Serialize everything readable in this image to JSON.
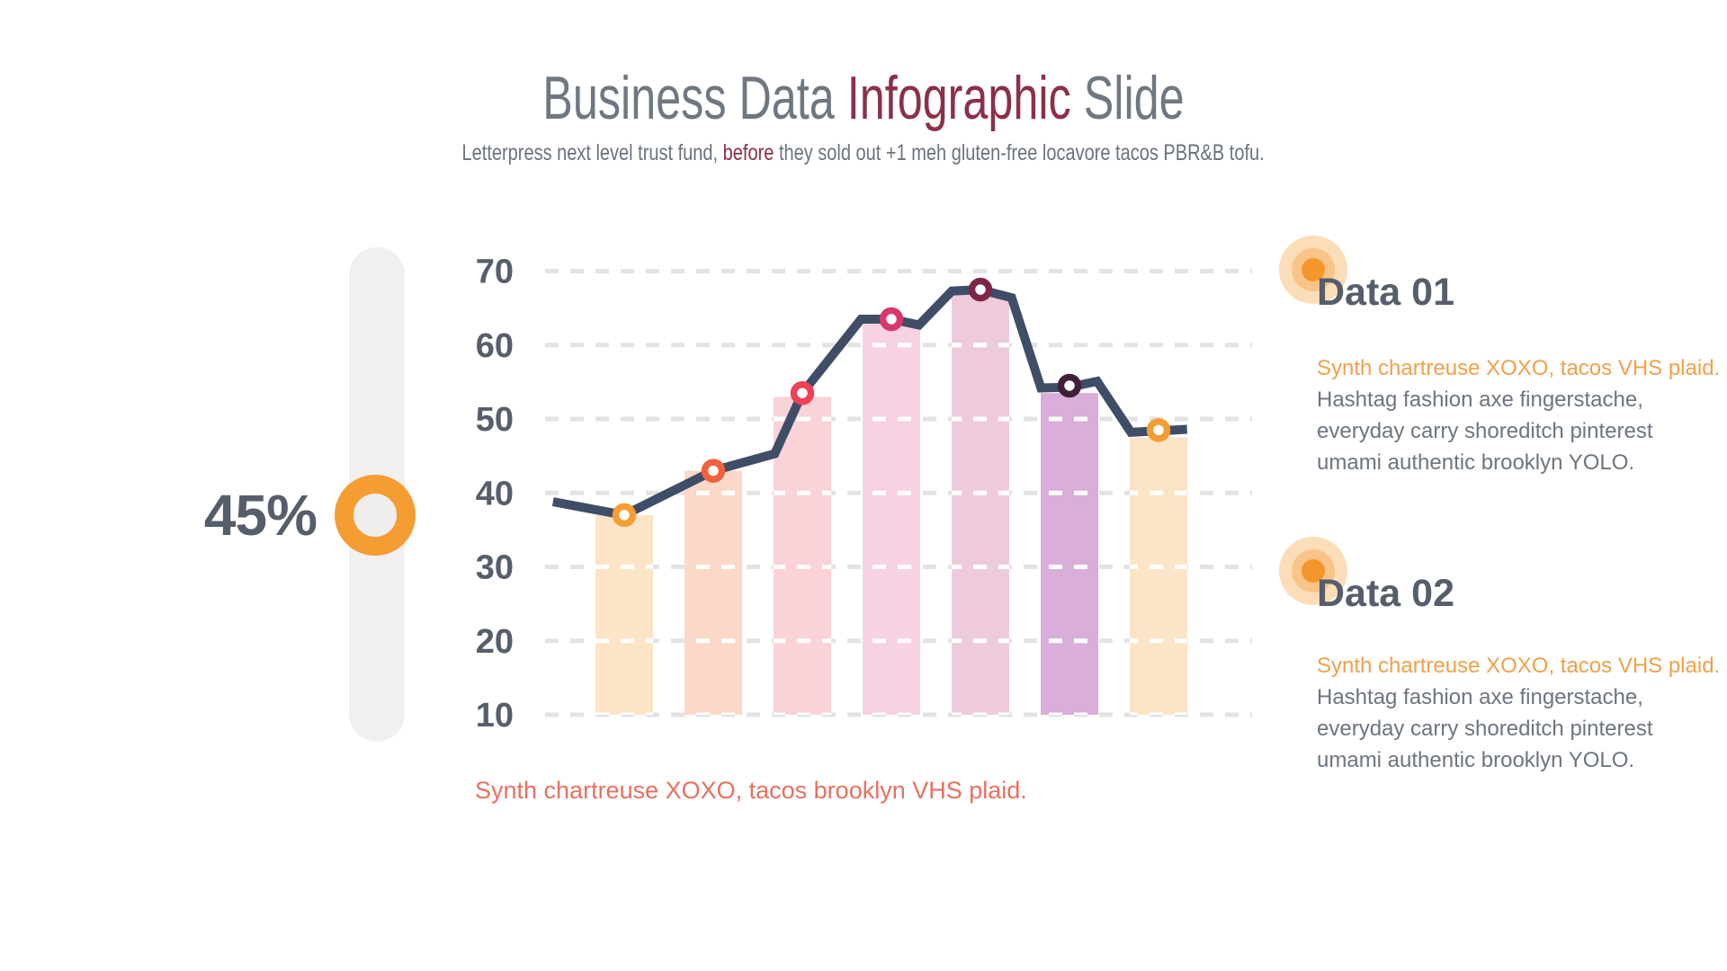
{
  "slide": {
    "title": {
      "part1": "Business Data ",
      "accent": "Infographic",
      "part2": " Slide"
    },
    "subtitle": {
      "part1": "Letterpress next level trust fund, ",
      "accent": "before",
      "part2": " they sold out +1 meh gluten-free locavore tacos PBR&B tofu."
    },
    "slider": {
      "value_label": "45%"
    },
    "caption": "Synth chartreuse XOXO, tacos brooklyn VHS plaid.",
    "cards": [
      {
        "heading": "Data 01",
        "body_highlight": "Synth chartreuse XOXO, tacos VHS plaid.",
        "body_lines": [
          "Hashtag fashion axe fingerstache,",
          "everyday carry shoreditch pinterest",
          "umami authentic brooklyn YOLO."
        ]
      },
      {
        "heading": "Data 02",
        "body_highlight": "Synth chartreuse XOXO, tacos VHS plaid.",
        "body_lines": [
          "Hashtag fashion axe fingerstache,",
          "everyday carry shoreditch pinterest",
          "umami authentic brooklyn YOLO."
        ]
      }
    ]
  },
  "chart_data": {
    "type": "bar",
    "title": "",
    "xlabel": "",
    "ylabel": "",
    "yticks": [
      10,
      20,
      30,
      40,
      50,
      60,
      70
    ],
    "ylim": [
      10,
      73
    ],
    "bar_baseline": 10,
    "grid": "horizontal dashed",
    "legend": "none",
    "series": [
      {
        "name": "bars",
        "type": "bar",
        "values": [
          37,
          43,
          53,
          63,
          67,
          53.5,
          47.5
        ],
        "colors": [
          "#fce4c6",
          "#fbd8c7",
          "#fad2d8",
          "#f6d2e2",
          "#eecadd",
          "#d9aeda",
          "#fce4c6"
        ]
      },
      {
        "name": "trend-line",
        "type": "line",
        "values": [
          37,
          43,
          53.5,
          63.5,
          67.5,
          54.5,
          48.5
        ],
        "line_color": "#3f4d66",
        "marker_colors": [
          "#f59d33",
          "#f2603c",
          "#ef4156",
          "#d6376c",
          "#7c2749",
          "#402038",
          "#f59d33"
        ]
      }
    ],
    "line_shape_trace": [
      [
        -0.8,
        38.8
      ],
      [
        0,
        37
      ],
      [
        1,
        43
      ],
      [
        1.69,
        45.3
      ],
      [
        2,
        53.5
      ],
      [
        2.66,
        63.5
      ],
      [
        3,
        63.5
      ],
      [
        3.31,
        62.7
      ],
      [
        3.68,
        67.3
      ],
      [
        4,
        67.5
      ],
      [
        4.35,
        66.4
      ],
      [
        4.68,
        54.2
      ],
      [
        5,
        54.3
      ],
      [
        5.31,
        55.1
      ],
      [
        5.69,
        48.2
      ],
      [
        6,
        48.4
      ],
      [
        6.32,
        48.6
      ]
    ],
    "colors": {
      "gridline": "#e3e3e3",
      "gridline_over_bars": "#ffffff",
      "axis_label": "#575e6b"
    }
  }
}
